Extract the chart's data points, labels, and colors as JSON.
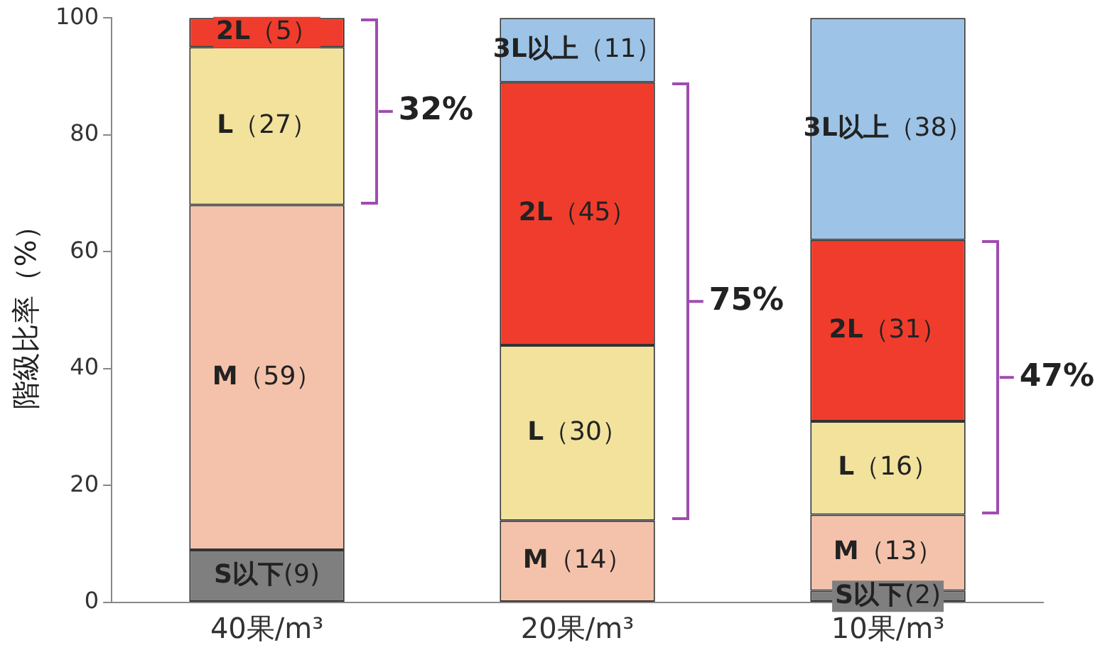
{
  "chart_data": {
    "type": "bar",
    "stacked": true,
    "ylabel": "階級比率（%）",
    "categories": [
      "40果/m³",
      "20果/m³",
      "10果/m³"
    ],
    "ylim": [
      0,
      100
    ],
    "yticks": [
      0,
      20,
      40,
      60,
      80,
      100
    ],
    "grid": false,
    "legend": false,
    "series": [
      {
        "name": "S以下",
        "color": "#7f7f7f",
        "values": [
          9,
          0,
          2
        ],
        "value_labels": [
          "(9)",
          null,
          "(2)"
        ]
      },
      {
        "name": "M",
        "color": "#f4c2aa",
        "values": [
          59,
          14,
          13
        ],
        "value_labels": [
          "（59）",
          "（14）",
          "（13）"
        ]
      },
      {
        "name": "L",
        "color": "#f2e29c",
        "values": [
          27,
          30,
          16
        ],
        "value_labels": [
          "（27）",
          "（30）",
          "（16）"
        ]
      },
      {
        "name": "2L",
        "color": "#f03c2c",
        "values": [
          5,
          45,
          31
        ],
        "value_labels": [
          "（5）",
          "（45）",
          "（31）"
        ]
      },
      {
        "name": "3L以上",
        "color": "#9dc3e6",
        "values": [
          0,
          11,
          38
        ],
        "value_labels": [
          null,
          "（11）",
          "（38）"
        ]
      }
    ],
    "annotations": [
      "32%",
      "75%",
      "47%"
    ]
  }
}
